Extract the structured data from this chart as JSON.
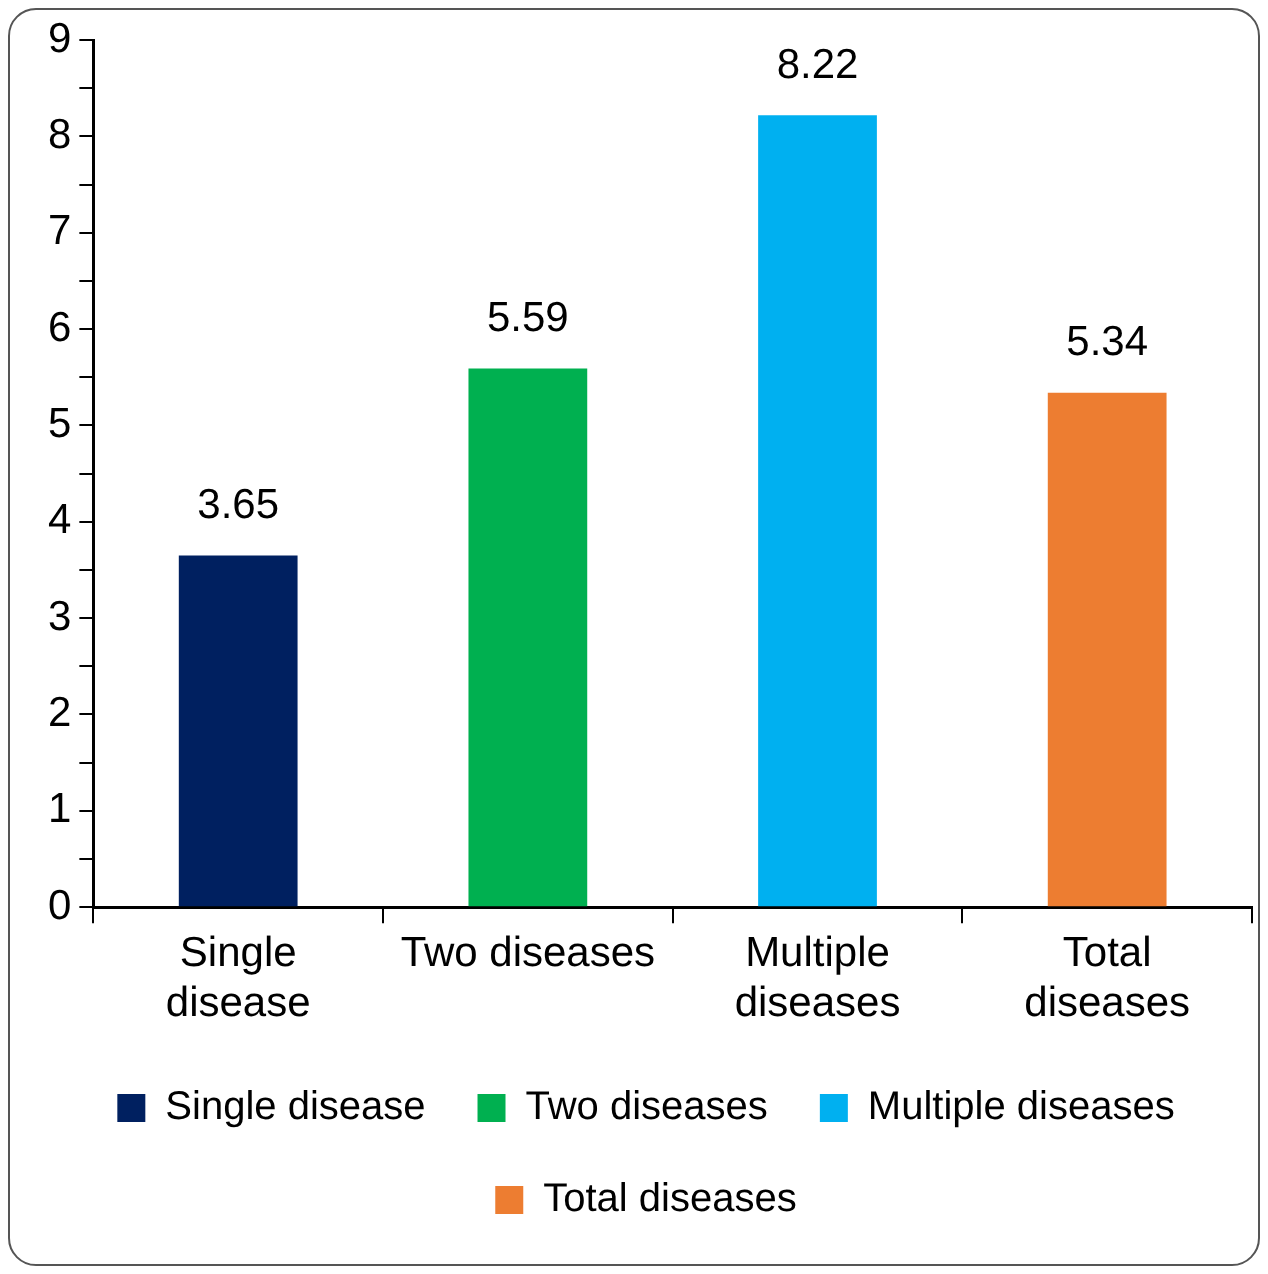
{
  "chart_data": {
    "type": "bar",
    "categories": [
      "Single disease",
      "Two diseases",
      "Multiple diseases",
      "Total diseases"
    ],
    "series": [
      {
        "name": "Single disease",
        "color": "#002060",
        "values": [
          3.65,
          null,
          null,
          null
        ]
      },
      {
        "name": "Two diseases",
        "color": "#00b050",
        "values": [
          null,
          5.59,
          null,
          null
        ]
      },
      {
        "name": "Multiple diseases",
        "color": "#00b0f0",
        "values": [
          null,
          null,
          8.22,
          null
        ]
      },
      {
        "name": "Total diseases",
        "color": "#ed7d31",
        "values": [
          null,
          null,
          null,
          5.34
        ]
      }
    ],
    "ylim": [
      0,
      9
    ],
    "yticks": [
      0,
      {
        "value": 0.5,
        "label": null
      },
      1,
      {
        "value": 1.5,
        "label": null
      },
      2,
      {
        "value": 2.5,
        "label": null
      },
      3,
      {
        "value": 3.5,
        "label": null
      },
      4,
      {
        "value": 4.5,
        "label": null
      },
      5,
      {
        "value": 5.5,
        "label": null
      },
      6,
      {
        "value": 6.5,
        "label": null
      },
      7,
      {
        "value": 7.5,
        "label": null
      },
      8,
      {
        "value": 8.5,
        "label": null
      },
      9
    ],
    "grid": false,
    "legend": "bottom",
    "data_labels": true
  }
}
